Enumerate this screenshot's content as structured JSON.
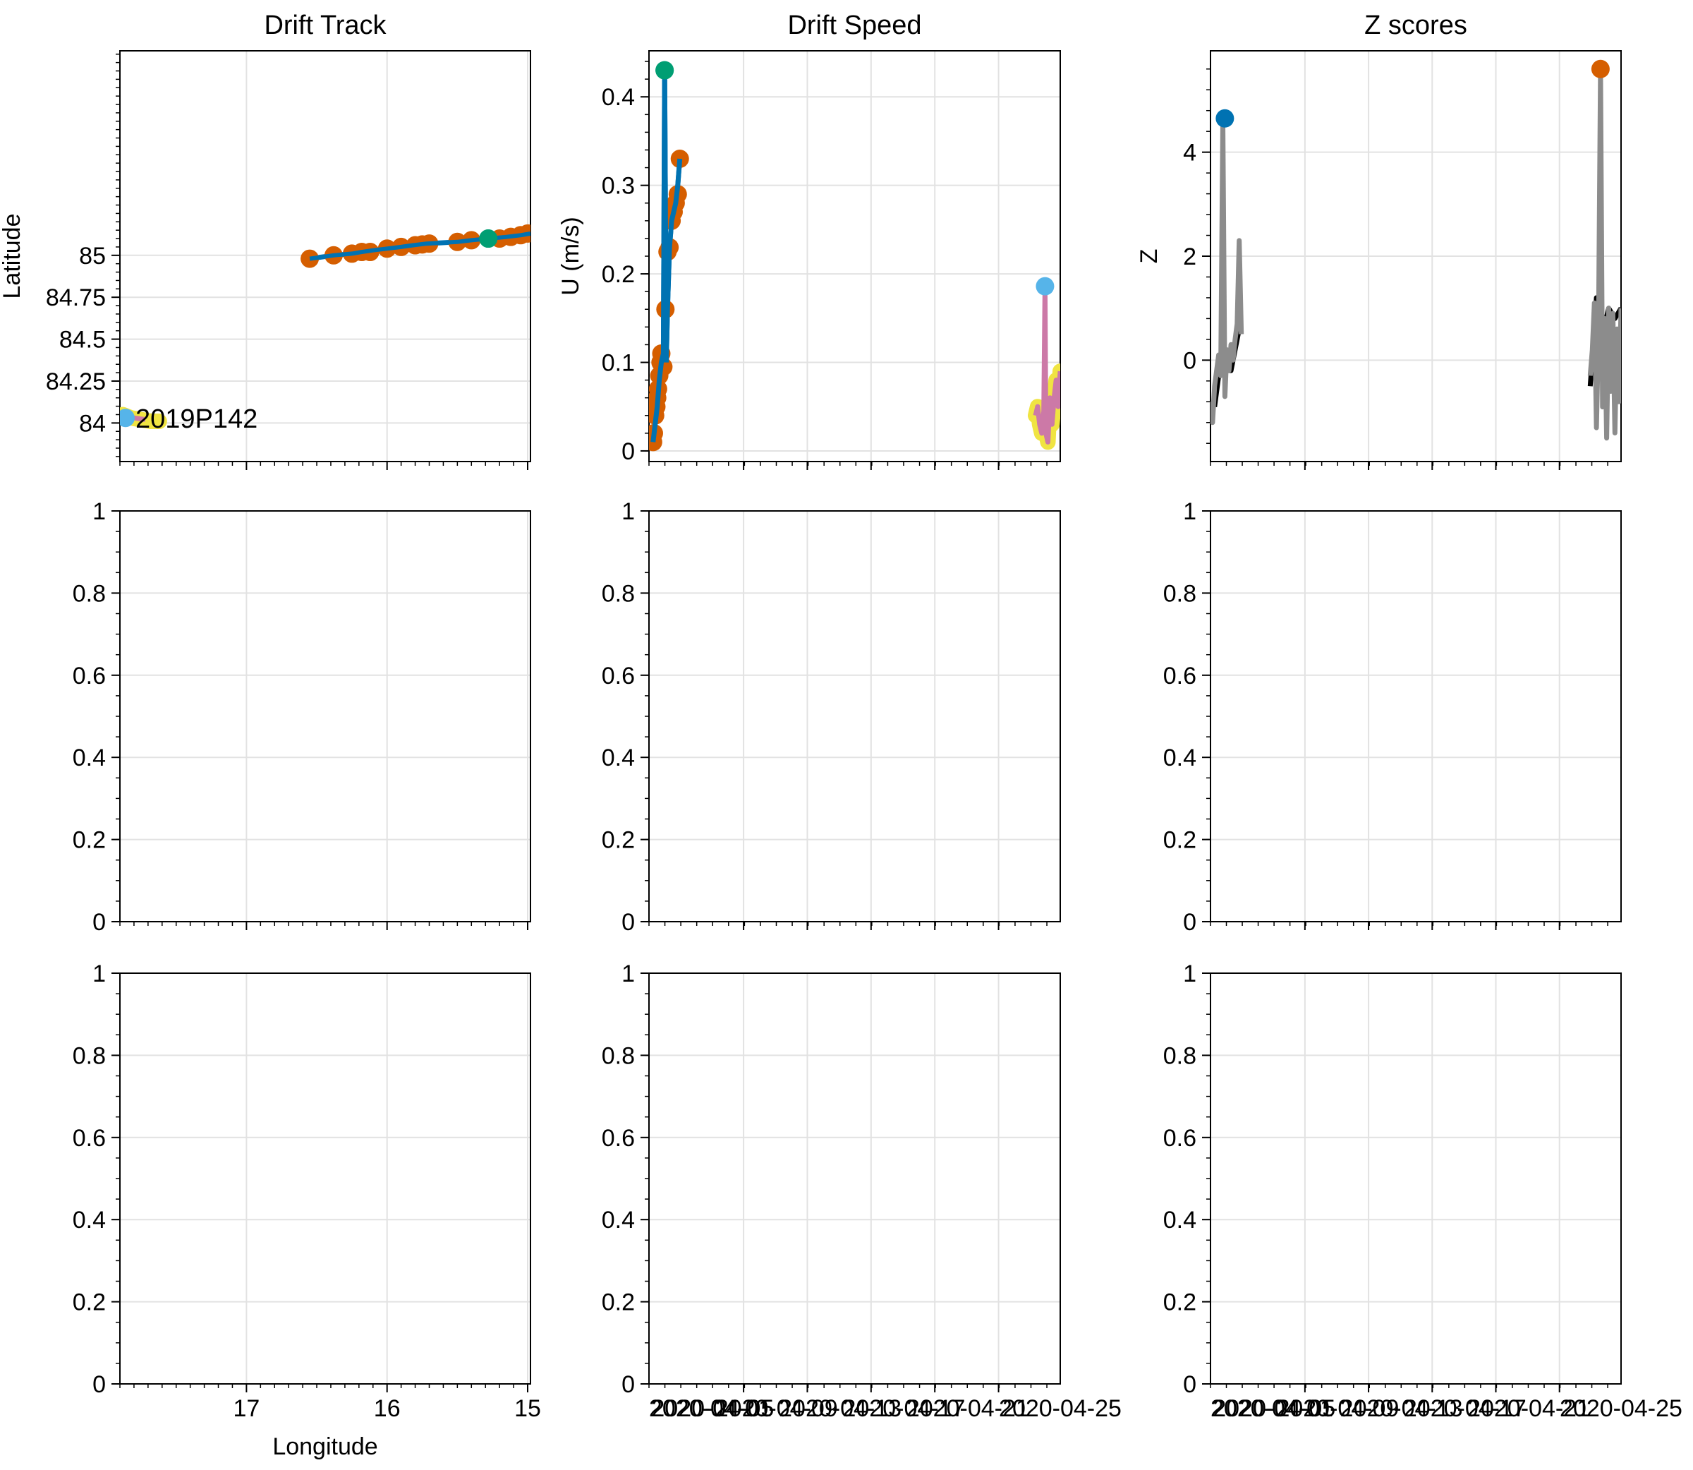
{
  "chart_data": [
    {
      "type": "line",
      "panel": "row1-col1",
      "title": "Drift Track",
      "xlabel": "",
      "ylabel": "Latitude",
      "x_reversed": true,
      "xlim": [
        17.9,
        14.98
      ],
      "ylim": [
        83.77,
        86.22
      ],
      "ylim_note": "",
      "yticks": [
        84,
        84.25,
        84.5,
        84.75,
        85
      ],
      "ytick_labels": [
        "84",
        "84.25",
        "84.5",
        "84.75",
        "85"
      ],
      "xticks": [
        17,
        16,
        15
      ],
      "xtick_labels": [],
      "grid": true,
      "annotation": "2019P142",
      "series": [
        {
          "role": "track-line",
          "color": "#0072b2",
          "x": [
            16.55,
            16.38,
            16.25,
            16.18,
            16.1,
            16.0,
            15.9,
            15.82,
            15.72,
            15.5,
            15.4,
            15.28,
            15.15,
            15.05,
            14.98
          ],
          "y": [
            84.98,
            85.0,
            85.01,
            85.02,
            85.03,
            85.04,
            85.05,
            85.06,
            85.07,
            85.08,
            85.09,
            85.1,
            85.11,
            85.12,
            85.13
          ]
        },
        {
          "role": "points",
          "color": "#d55e00",
          "x": [
            16.55,
            16.38,
            16.25,
            16.18,
            16.12,
            16.0,
            15.9,
            15.8,
            15.75,
            15.7,
            15.5,
            15.4,
            15.2,
            15.12,
            15.05,
            15.0
          ],
          "y": [
            84.98,
            85.0,
            85.01,
            85.02,
            85.02,
            85.04,
            85.05,
            85.06,
            85.065,
            85.07,
            85.08,
            85.09,
            85.1,
            85.11,
            85.12,
            85.13
          ]
        },
        {
          "role": "highlight-point",
          "color": "#009e73",
          "x": [
            15.28
          ],
          "y": [
            85.1
          ]
        },
        {
          "role": "second-buoy-halo",
          "color": "#f0e442",
          "x": [
            17.88,
            17.82,
            17.75,
            17.68,
            17.62
          ],
          "y": [
            84.05,
            84.03,
            84.02,
            84.01,
            84.01
          ]
        },
        {
          "role": "second-buoy-line",
          "color": "#cc79a7",
          "x": [
            17.88,
            17.8,
            17.72
          ],
          "y": [
            84.04,
            84.03,
            84.02
          ]
        },
        {
          "role": "second-buoy-point",
          "color": "#56b4e9",
          "x": [
            17.86
          ],
          "y": [
            84.03
          ]
        }
      ]
    },
    {
      "type": "line",
      "panel": "row1-col2",
      "title": "Drift Speed",
      "xlabel": "",
      "ylabel": "U (m/s)",
      "xlim": [
        0,
        1
      ],
      "ylim": [
        -0.012,
        0.452
      ],
      "yticks": [
        0,
        0.1,
        0.2,
        0.3,
        0.4
      ],
      "ytick_labels": [
        "0",
        "0.1",
        "0.2",
        "0.3",
        "0.4"
      ],
      "grid": true,
      "series": [
        {
          "role": "speed-line-buoy1",
          "color": "#0072b2",
          "x": [
            0.01,
            0.015,
            0.02,
            0.025,
            0.03,
            0.035,
            0.038,
            0.042,
            0.045,
            0.05,
            0.055,
            0.06,
            0.065,
            0.07,
            0.075
          ],
          "y": [
            0.01,
            0.03,
            0.05,
            0.08,
            0.1,
            0.11,
            0.43,
            0.1,
            0.16,
            0.23,
            0.26,
            0.27,
            0.28,
            0.3,
            0.33
          ]
        },
        {
          "role": "speed-points-buoy1",
          "color": "#d55e00",
          "x": [
            0.01,
            0.012,
            0.015,
            0.018,
            0.02,
            0.022,
            0.025,
            0.028,
            0.03,
            0.035,
            0.04,
            0.045,
            0.05,
            0.055,
            0.06,
            0.065,
            0.07,
            0.075
          ],
          "y": [
            0.01,
            0.02,
            0.04,
            0.05,
            0.06,
            0.07,
            0.085,
            0.1,
            0.11,
            0.095,
            0.16,
            0.225,
            0.23,
            0.26,
            0.27,
            0.28,
            0.29,
            0.33
          ]
        },
        {
          "role": "speed-max-buoy1",
          "color": "#009e73",
          "x": [
            0.038
          ],
          "y": [
            0.43
          ]
        },
        {
          "role": "speed-halo-buoy2",
          "color": "#f0e442",
          "x": [
            0.94,
            0.945,
            0.95,
            0.955,
            0.96,
            0.965,
            0.97,
            0.975,
            0.98,
            0.985,
            0.99,
            0.995,
            1.0
          ],
          "y": [
            0.04,
            0.05,
            0.03,
            0.02,
            0.045,
            0.02,
            0.01,
            0.06,
            0.03,
            0.06,
            0.08,
            0.05,
            0.09
          ]
        },
        {
          "role": "speed-line-buoy2",
          "color": "#cc79a7",
          "x": [
            0.94,
            0.945,
            0.95,
            0.955,
            0.96,
            0.963,
            0.965,
            0.97,
            0.975,
            0.98,
            0.985,
            0.99,
            0.995,
            1.0
          ],
          "y": [
            0.04,
            0.05,
            0.03,
            0.02,
            0.045,
            0.185,
            0.02,
            0.01,
            0.06,
            0.03,
            0.06,
            0.08,
            0.05,
            0.09
          ]
        },
        {
          "role": "speed-max-buoy2",
          "color": "#56b4e9",
          "x": [
            0.963
          ],
          "y": [
            0.186
          ]
        }
      ]
    },
    {
      "type": "line",
      "panel": "row1-col3",
      "title": "Z scores",
      "xlabel": "",
      "ylabel": "Z",
      "xlim": [
        0,
        1
      ],
      "ylim": [
        -1.95,
        5.95
      ],
      "yticks": [
        0,
        2,
        4
      ],
      "ytick_labels": [
        "0",
        "2",
        "4"
      ],
      "grid": true,
      "series": [
        {
          "role": "z-black-buoy1",
          "color": "#000000",
          "x": [
            0.01,
            0.02,
            0.03,
            0.04,
            0.05,
            0.06,
            0.07
          ],
          "y": [
            -0.9,
            -0.3,
            -0.2,
            -0.2,
            -0.2,
            0.2,
            0.6
          ]
        },
        {
          "role": "z-gray-buoy1",
          "color": "#8c8c8c",
          "x": [
            0.0,
            0.005,
            0.01,
            0.015,
            0.02,
            0.025,
            0.03,
            0.035,
            0.04,
            0.045,
            0.05,
            0.055,
            0.06,
            0.065,
            0.07,
            0.075
          ],
          "y": [
            -0.8,
            -1.2,
            -0.5,
            -0.2,
            0.1,
            -0.3,
            4.6,
            -0.7,
            0.2,
            -0.2,
            0.3,
            0.0,
            0.4,
            0.7,
            2.3,
            0.5
          ]
        },
        {
          "role": "z-max-buoy1",
          "color": "#0072b2",
          "x": [
            0.035
          ],
          "y": [
            4.65
          ]
        },
        {
          "role": "z-black-buoy2",
          "color": "#000000",
          "x": [
            0.925,
            0.94,
            0.955,
            0.97,
            0.985,
            1.0
          ],
          "y": [
            -0.5,
            1.2,
            0.5,
            1.0,
            0.8,
            1.0
          ]
        },
        {
          "role": "z-gray-buoy2",
          "color": "#8c8c8c",
          "x": [
            0.925,
            0.93,
            0.935,
            0.94,
            0.945,
            0.95,
            0.955,
            0.96,
            0.965,
            0.97,
            0.975,
            0.98,
            0.985,
            0.99,
            0.995,
            1.0
          ],
          "y": [
            -0.3,
            0.2,
            1.1,
            -1.3,
            0.5,
            5.6,
            -0.9,
            0.8,
            -1.5,
            1.0,
            -0.6,
            0.9,
            -1.4,
            0.6,
            -0.8,
            1.0
          ]
        },
        {
          "role": "z-max-buoy2",
          "color": "#d55e00",
          "x": [
            0.95
          ],
          "y": [
            5.6
          ]
        }
      ]
    },
    {
      "type": "line",
      "panel": "row2-col1",
      "title": "",
      "xlabel": "",
      "ylabel": "",
      "ylim": [
        0,
        1
      ],
      "yticks": [
        0,
        0.2,
        0.4,
        0.6,
        0.8,
        1
      ],
      "ytick_labels": [
        "0",
        "0.2",
        "0.4",
        "0.6",
        "0.8",
        "1"
      ],
      "grid": true,
      "series": []
    },
    {
      "type": "line",
      "panel": "row2-col2",
      "title": "",
      "xlabel": "",
      "ylabel": "",
      "ylim": [
        0,
        1
      ],
      "yticks": [
        0,
        0.2,
        0.4,
        0.6,
        0.8,
        1
      ],
      "ytick_labels": [
        "0",
        "0.2",
        "0.4",
        "0.6",
        "0.8",
        "1"
      ],
      "grid": true,
      "series": []
    },
    {
      "type": "line",
      "panel": "row2-col3",
      "title": "",
      "xlabel": "",
      "ylabel": "",
      "ylim": [
        0,
        1
      ],
      "yticks": [
        0,
        0.2,
        0.4,
        0.6,
        0.8,
        1
      ],
      "ytick_labels": [
        "0",
        "0.2",
        "0.4",
        "0.6",
        "0.8",
        "1"
      ],
      "grid": true,
      "series": []
    },
    {
      "type": "line",
      "panel": "row3-col1",
      "title": "",
      "xlabel": "Longitude",
      "ylabel": "",
      "ylim": [
        0,
        1
      ],
      "yticks": [
        0,
        0.2,
        0.4,
        0.6,
        0.8,
        1
      ],
      "ytick_labels": [
        "0",
        "0.2",
        "0.4",
        "0.6",
        "0.8",
        "1"
      ],
      "xtick_labels": [
        "17",
        "16",
        "15"
      ],
      "grid": true,
      "series": []
    },
    {
      "type": "line",
      "panel": "row3-col2",
      "title": "",
      "xlabel": "",
      "ylabel": "",
      "ylim": [
        0,
        1
      ],
      "yticks": [
        0,
        0.2,
        0.4,
        0.6,
        0.8,
        1
      ],
      "ytick_labels": [
        "0",
        "0.2",
        "0.4",
        "0.6",
        "0.8",
        "1"
      ],
      "xtick_labels": [
        "2020-04-01",
        "2020-04-05",
        "2020-04-09",
        "2020-04-13",
        "2020-04-17",
        "2020-04-21",
        "2020-04-25"
      ],
      "grid": true,
      "series": []
    },
    {
      "type": "line",
      "panel": "row3-col3",
      "title": "",
      "xlabel": "",
      "ylabel": "",
      "ylim": [
        0,
        1
      ],
      "yticks": [
        0,
        0.2,
        0.4,
        0.6,
        0.8,
        1
      ],
      "ytick_labels": [
        "0",
        "0.2",
        "0.4",
        "0.6",
        "0.8",
        "1"
      ],
      "xtick_labels": [
        "2020-04-01",
        "2020-04-05",
        "2020-04-09",
        "2020-04-13",
        "2020-04-17",
        "2020-04-21",
        "2020-04-25"
      ],
      "grid": true,
      "series": []
    }
  ]
}
